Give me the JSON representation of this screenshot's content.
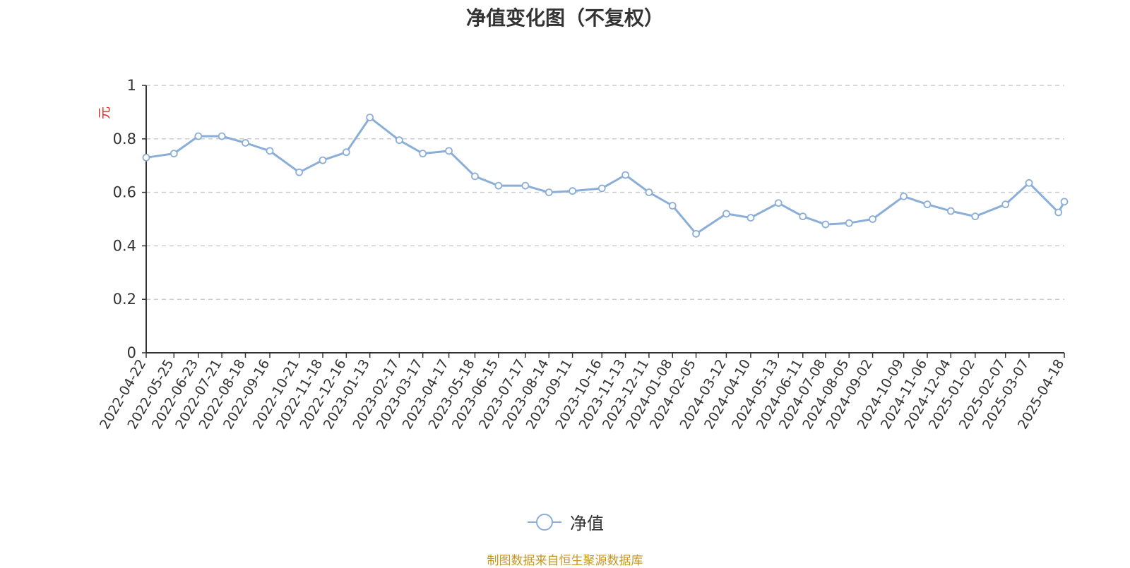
{
  "title": "净值变化图（不复权）",
  "source_note": "制图数据来自恒生聚源数据库",
  "colors": {
    "line": "#8aaed8",
    "axis": "#333333",
    "grid": "#cccccc",
    "unit": "#e02020",
    "source": "#c8961e"
  },
  "chart_data": {
    "type": "line",
    "title": "净值变化图（不复权）",
    "ylabel": "元",
    "ylim": [
      0,
      1
    ],
    "yticks": [
      "0",
      "0.2",
      "0.4",
      "0.6",
      "0.8",
      "1"
    ],
    "grid": true,
    "legend_position": "bottom-center",
    "x_tick_labels": [
      "2022-04-22",
      "2022-05-25",
      "2022-06-23",
      "2022-07-21",
      "2022-08-18",
      "2022-09-16",
      "2022-10-21",
      "2022-11-18",
      "2022-12-16",
      "2023-01-13",
      "2023-02-17",
      "2023-03-17",
      "2023-04-17",
      "2023-05-18",
      "2023-06-15",
      "2023-07-17",
      "2023-08-14",
      "2023-09-11",
      "2023-10-16",
      "2023-11-13",
      "2023-12-11",
      "2024-01-08",
      "2024-02-05",
      "2024-03-12",
      "2024-04-10",
      "2024-05-13",
      "2024-06-11",
      "2024-07-08",
      "2024-08-05",
      "2024-09-02",
      "2024-10-09",
      "2024-11-06",
      "2024-12-04",
      "2025-01-02",
      "2025-02-07",
      "2025-03-07",
      "2025-04-18"
    ],
    "series": [
      {
        "name": "净值",
        "x": [
          "2022-04-22",
          "2022-05-25",
          "2022-06-23",
          "2022-07-21",
          "2022-08-18",
          "2022-09-16",
          "2022-10-21",
          "2022-11-18",
          "2022-12-16",
          "2023-01-13",
          "2023-02-17",
          "2023-03-17",
          "2023-04-17",
          "2023-05-18",
          "2023-06-15",
          "2023-07-17",
          "2023-08-14",
          "2023-09-11",
          "2023-10-16",
          "2023-11-13",
          "2023-12-11",
          "2024-01-08",
          "2024-02-05",
          "2024-03-12",
          "2024-04-10",
          "2024-05-13",
          "2024-06-11",
          "2024-07-08",
          "2024-08-05",
          "2024-09-02",
          "2024-10-09",
          "2024-11-06",
          "2024-12-04",
          "2025-01-02",
          "2025-02-07",
          "2025-03-07",
          "2025-04-11",
          "2025-04-18"
        ],
        "values": [
          0.73,
          0.745,
          0.81,
          0.81,
          0.785,
          0.755,
          0.675,
          0.72,
          0.75,
          0.88,
          0.795,
          0.745,
          0.755,
          0.66,
          0.625,
          0.625,
          0.6,
          0.605,
          0.615,
          0.665,
          0.6,
          0.55,
          0.445,
          0.52,
          0.505,
          0.56,
          0.51,
          0.48,
          0.485,
          0.5,
          0.585,
          0.555,
          0.53,
          0.51,
          0.555,
          0.635,
          0.525,
          0.565
        ]
      }
    ]
  },
  "legend": {
    "label": "净值"
  }
}
